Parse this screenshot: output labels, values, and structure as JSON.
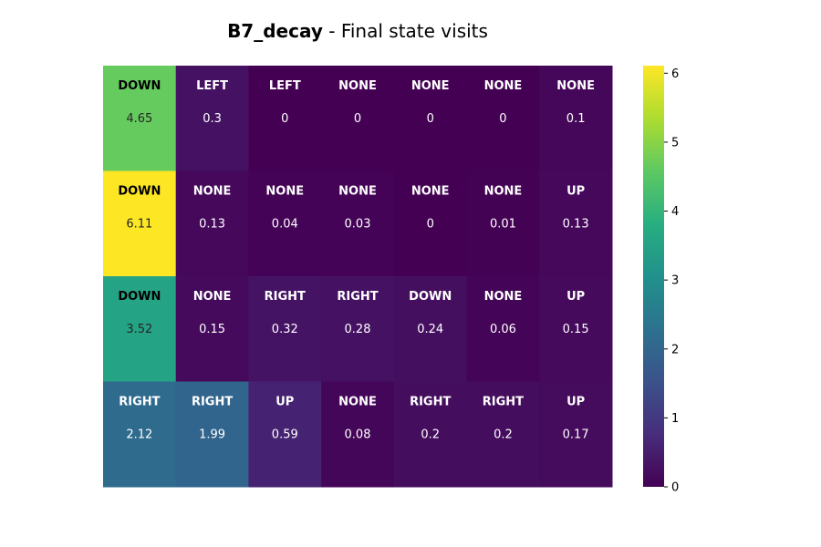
{
  "title": {
    "bold": "B7_decay",
    "rest": " - Final state visits"
  },
  "chart_data": {
    "type": "heatmap",
    "rows": 4,
    "cols": 7,
    "colormap": "viridis",
    "colorbar": {
      "min": 0,
      "max": 6.11,
      "ticks": [
        "0",
        "1",
        "2",
        "3",
        "4",
        "5",
        "6"
      ]
    },
    "values": [
      [
        4.65,
        0.3,
        0,
        0,
        0,
        0,
        0.1
      ],
      [
        6.11,
        0.13,
        0.04,
        0.03,
        0,
        0.01,
        0.13
      ],
      [
        3.52,
        0.15,
        0.32,
        0.28,
        0.24,
        0.06,
        0.15
      ],
      [
        2.12,
        1.99,
        0.59,
        0.08,
        0.2,
        0.2,
        0.17
      ]
    ],
    "value_labels": [
      [
        "4.65",
        "0.3",
        "0",
        "0",
        "0",
        "0",
        "0.1"
      ],
      [
        "6.11",
        "0.13",
        "0.04",
        "0.03",
        "0",
        "0.01",
        "0.13"
      ],
      [
        "3.52",
        "0.15",
        "0.32",
        "0.28",
        "0.24",
        "0.06",
        "0.15"
      ],
      [
        "2.12",
        "1.99",
        "0.59",
        "0.08",
        "0.2",
        "0.2",
        "0.17"
      ]
    ],
    "actions": [
      [
        "DOWN",
        "LEFT",
        "LEFT",
        "NONE",
        "NONE",
        "NONE",
        "NONE"
      ],
      [
        "DOWN",
        "NONE",
        "NONE",
        "NONE",
        "NONE",
        "NONE",
        "UP"
      ],
      [
        "DOWN",
        "NONE",
        "RIGHT",
        "RIGHT",
        "DOWN",
        "NONE",
        "UP"
      ],
      [
        "RIGHT",
        "RIGHT",
        "UP",
        "NONE",
        "RIGHT",
        "RIGHT",
        "UP"
      ]
    ]
  }
}
